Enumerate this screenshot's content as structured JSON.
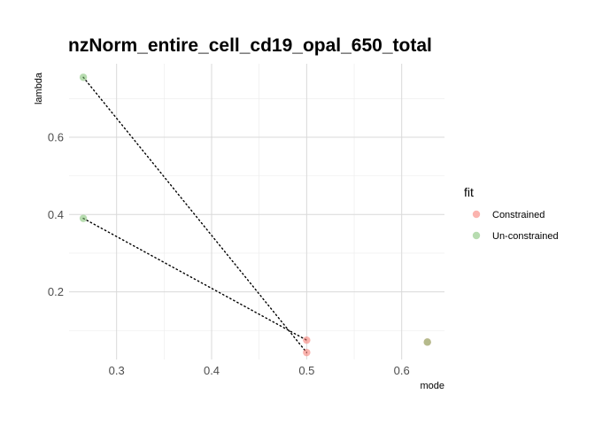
{
  "chart_data": {
    "type": "scatter",
    "title": "nzNorm_entire_cell_cd19_opal_650_total",
    "xlabel": "mode",
    "ylabel": "lambda",
    "x_ticks": [
      0.3,
      0.4,
      0.5,
      0.6
    ],
    "x_tick_labels": [
      "0.3",
      "0.4",
      "0.5",
      "0.6"
    ],
    "y_ticks": [
      0.2,
      0.4,
      0.6
    ],
    "y_tick_labels": [
      "0.2",
      "0.4",
      "0.6"
    ],
    "xlim": [
      0.25,
      0.645
    ],
    "ylim": [
      0.025,
      0.79
    ],
    "grid": true,
    "legend": {
      "title": "fit",
      "position": "right",
      "entries": [
        {
          "label": "Constrained",
          "color": "#f8766d"
        },
        {
          "label": "Un-constrained",
          "color": "#7cbf70"
        }
      ]
    },
    "series": [
      {
        "name": "Constrained",
        "color": "#f8766d",
        "points": [
          {
            "x": 0.5,
            "y": 0.075
          },
          {
            "x": 0.5,
            "y": 0.043
          },
          {
            "x": 0.627,
            "y": 0.07
          }
        ]
      },
      {
        "name": "Un-constrained",
        "color": "#7cbf70",
        "points": [
          {
            "x": 0.265,
            "y": 0.755
          },
          {
            "x": 0.265,
            "y": 0.39
          },
          {
            "x": 0.627,
            "y": 0.07
          }
        ]
      }
    ],
    "connectors": [
      {
        "from": {
          "x": 0.265,
          "y": 0.755
        },
        "to": {
          "x": 0.5,
          "y": 0.043
        }
      },
      {
        "from": {
          "x": 0.265,
          "y": 0.39
        },
        "to": {
          "x": 0.5,
          "y": 0.075
        }
      }
    ],
    "connector_style": "dotted"
  }
}
